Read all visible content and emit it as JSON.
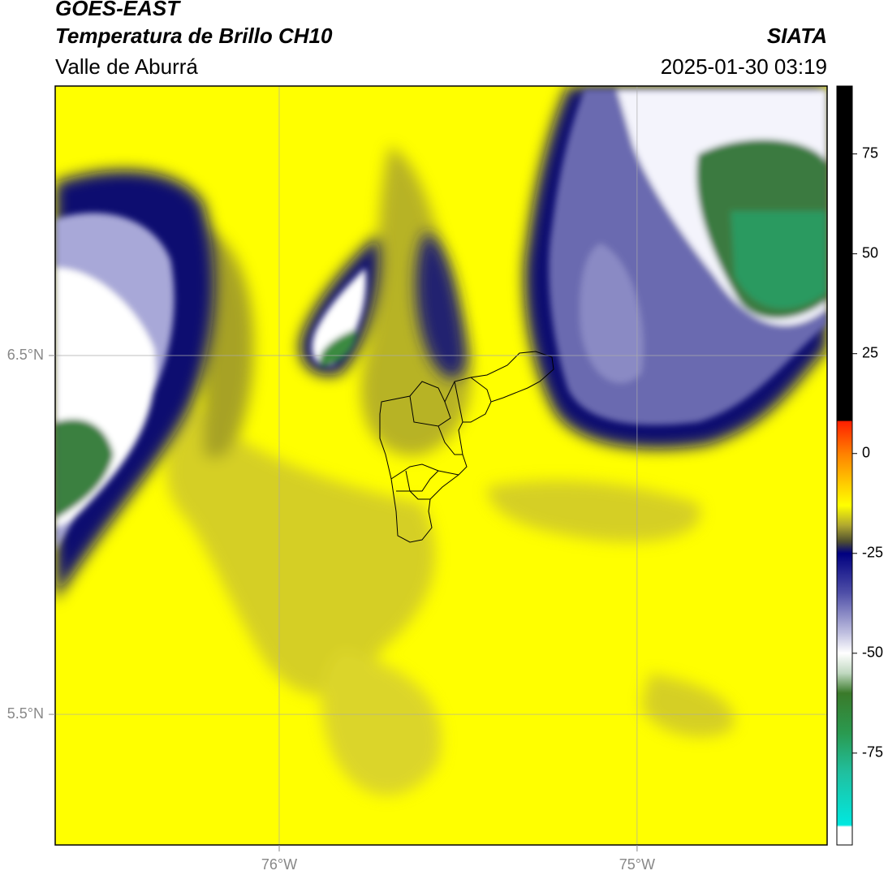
{
  "header": {
    "title": "GOES-EAST",
    "subtitle": "Temperatura de Brillo CH10",
    "region": "Valle de Aburrá",
    "source": "SIATA",
    "datetime": "2025-01-30 03:19"
  },
  "map": {
    "xlim": [
      -76.626,
      -74.469
    ],
    "ylim": [
      5.136,
      7.251
    ],
    "xticks": [
      {
        "value": -76,
        "label": "76°W"
      },
      {
        "value": -75,
        "label": "75°W"
      }
    ],
    "yticks": [
      {
        "value": 6.5,
        "label": "6.5°N"
      },
      {
        "value": 5.5,
        "label": "5.5°N"
      }
    ],
    "grid": true
  },
  "colorbar": {
    "lim": [
      -98,
      92
    ],
    "ticks": [
      75,
      50,
      25,
      0,
      -25,
      -50,
      -75
    ],
    "stops": [
      {
        "value": 92,
        "color": "#000000"
      },
      {
        "value": 8.3,
        "color": "#000000"
      },
      {
        "value": 8,
        "color": "#ff2000"
      },
      {
        "value": 0,
        "color": "#ff8000"
      },
      {
        "value": -8,
        "color": "#ffd000"
      },
      {
        "value": -13,
        "color": "#ffff00"
      },
      {
        "value": -18,
        "color": "#b0a830"
      },
      {
        "value": -22,
        "color": "#505030"
      },
      {
        "value": -25,
        "color": "#000080"
      },
      {
        "value": -35,
        "color": "#5050a8"
      },
      {
        "value": -45,
        "color": "#c0c0e0"
      },
      {
        "value": -50,
        "color": "#ffffff"
      },
      {
        "value": -55,
        "color": "#c0d8c0"
      },
      {
        "value": -60,
        "color": "#3a7a2a"
      },
      {
        "value": -70,
        "color": "#2a9a50"
      },
      {
        "value": -80,
        "color": "#20c0a0"
      },
      {
        "value": -93,
        "color": "#00e8e0"
      },
      {
        "value": -93.5,
        "color": "#ffffff"
      },
      {
        "value": -98,
        "color": "#ffffff"
      }
    ]
  }
}
